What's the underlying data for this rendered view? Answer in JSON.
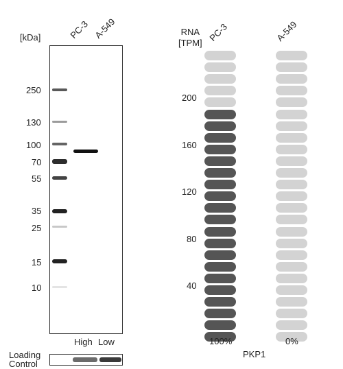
{
  "blot": {
    "kda_label": "[kDa]",
    "lanes": [
      "PC-3",
      "A-549"
    ],
    "markers": [
      "250",
      "130",
      "100",
      "70",
      "55",
      "35",
      "25",
      "15",
      "10"
    ],
    "bottom_labels": [
      "High",
      "Low"
    ],
    "loading_control": [
      "Loading",
      "Control"
    ]
  },
  "rna": {
    "header": [
      "RNA",
      "[TPM]"
    ],
    "lanes": [
      "PC-3",
      "A-549"
    ],
    "ticks": [
      "200",
      "160",
      "120",
      "80",
      "40"
    ],
    "percents": [
      "100%",
      "0%"
    ],
    "gene": "PKP1",
    "pc3_filled_fraction": 0.8,
    "a549_filled_fraction": 0.0,
    "colors": {
      "filled": "#555555",
      "empty": "#d3d3d3"
    }
  }
}
